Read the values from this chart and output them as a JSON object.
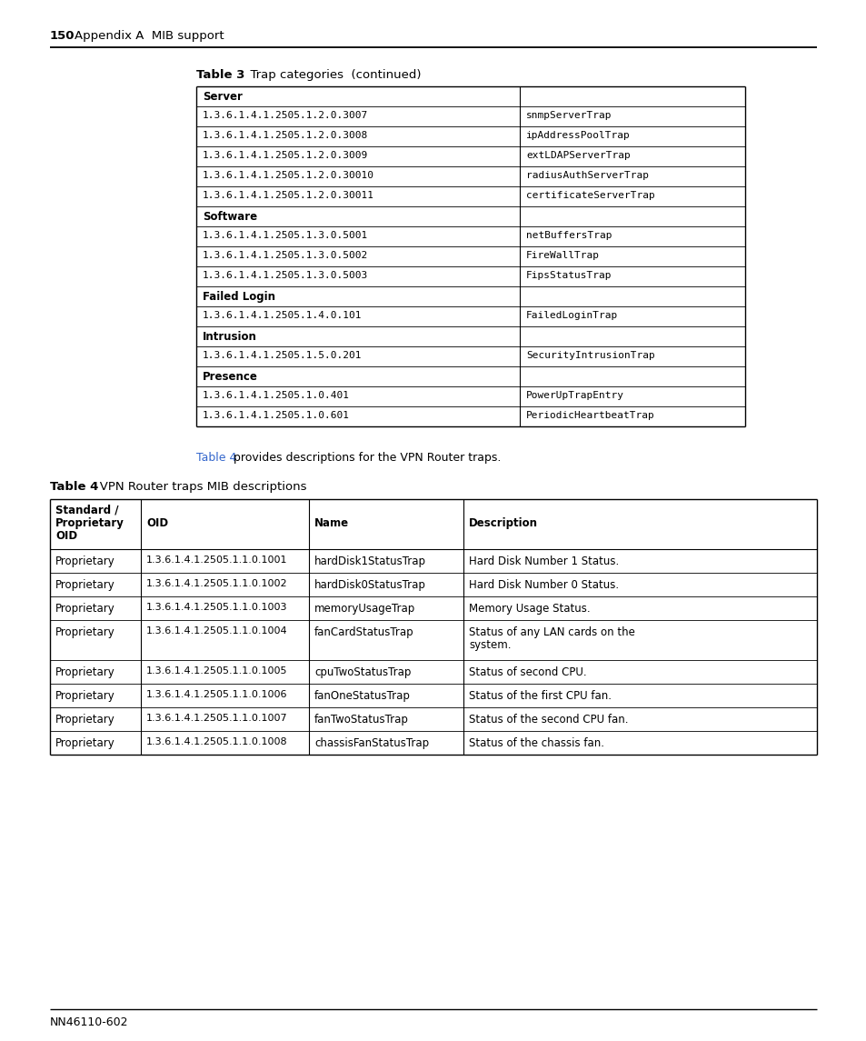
{
  "page_number": "150",
  "page_header": "Appendix A  MIB support",
  "page_footer": "NN46110-602",
  "table3_rows": [
    {
      "col1": "Server",
      "col2": "",
      "bold": true
    },
    {
      "col1": "1.3.6.1.4.1.2505.1.2.0.3007",
      "col2": "snmpServerTrap",
      "bold": false
    },
    {
      "col1": "1.3.6.1.4.1.2505.1.2.0.3008",
      "col2": "ipAddressPoolTrap",
      "bold": false
    },
    {
      "col1": "1.3.6.1.4.1.2505.1.2.0.3009",
      "col2": "extLDAPServerTrap",
      "bold": false
    },
    {
      "col1": "1.3.6.1.4.1.2505.1.2.0.30010",
      "col2": "radiusAuthServerTrap",
      "bold": false
    },
    {
      "col1": "1.3.6.1.4.1.2505.1.2.0.30011",
      "col2": "certificateServerTrap",
      "bold": false
    },
    {
      "col1": "Software",
      "col2": "",
      "bold": true
    },
    {
      "col1": "1.3.6.1.4.1.2505.1.3.0.5001",
      "col2": "netBuffersTrap",
      "bold": false
    },
    {
      "col1": "1.3.6.1.4.1.2505.1.3.0.5002",
      "col2": "FireWallTrap",
      "bold": false
    },
    {
      "col1": "1.3.6.1.4.1.2505.1.3.0.5003",
      "col2": "FipsStatusTrap",
      "bold": false
    },
    {
      "col1": "Failed Login",
      "col2": "",
      "bold": true
    },
    {
      "col1": "1.3.6.1.4.1.2505.1.4.0.101",
      "col2": "FailedLoginTrap",
      "bold": false
    },
    {
      "col1": "Intrusion",
      "col2": "",
      "bold": true
    },
    {
      "col1": "1.3.6.1.4.1.2505.1.5.0.201",
      "col2": "SecurityIntrusionTrap",
      "bold": false
    },
    {
      "col1": "Presence",
      "col2": "",
      "bold": true
    },
    {
      "col1": "1.3.6.1.4.1.2505.1.0.401",
      "col2": "PowerUpTrapEntry",
      "bold": false
    },
    {
      "col1": "1.3.6.1.4.1.2505.1.0.601",
      "col2": "PeriodicHeartbeatTrap",
      "bold": false
    }
  ],
  "mid_text_link": "Table 4",
  "mid_text_rest": " provides descriptions for the VPN Router traps.",
  "table4_title_bold": "Table 4",
  "table4_title_rest": "   VPN Router traps MIB descriptions",
  "table4_rows": [
    [
      "Proprietary",
      "1.3.6.1.4.1.2505.1.1.0.1001",
      "hardDisk1StatusTrap",
      "Hard Disk Number 1 Status."
    ],
    [
      "Proprietary",
      "1.3.6.1.4.1.2505.1.1.0.1002",
      "hardDisk0StatusTrap",
      "Hard Disk Number 0 Status."
    ],
    [
      "Proprietary",
      "1.3.6.1.4.1.2505.1.1.0.1003",
      "memoryUsageTrap",
      "Memory Usage Status."
    ],
    [
      "Proprietary",
      "1.3.6.1.4.1.2505.1.1.0.1004",
      "fanCardStatusTrap",
      "Status of any LAN cards on the\nsystem."
    ],
    [
      "Proprietary",
      "1.3.6.1.4.1.2505.1.1.0.1005",
      "cpuTwoStatusTrap",
      "Status of second CPU."
    ],
    [
      "Proprietary",
      "1.3.6.1.4.1.2505.1.1.0.1006",
      "fanOneStatusTrap",
      "Status of the first CPU fan."
    ],
    [
      "Proprietary",
      "1.3.6.1.4.1.2505.1.1.0.1007",
      "fanTwoStatusTrap",
      "Status of the second CPU fan."
    ],
    [
      "Proprietary",
      "1.3.6.1.4.1.2505.1.1.0.1008",
      "chassisFanStatusTrap",
      "Status of the chassis fan."
    ]
  ],
  "table4_row_heights": [
    26,
    26,
    26,
    44,
    26,
    26,
    26,
    26
  ],
  "bg_color": "#ffffff"
}
